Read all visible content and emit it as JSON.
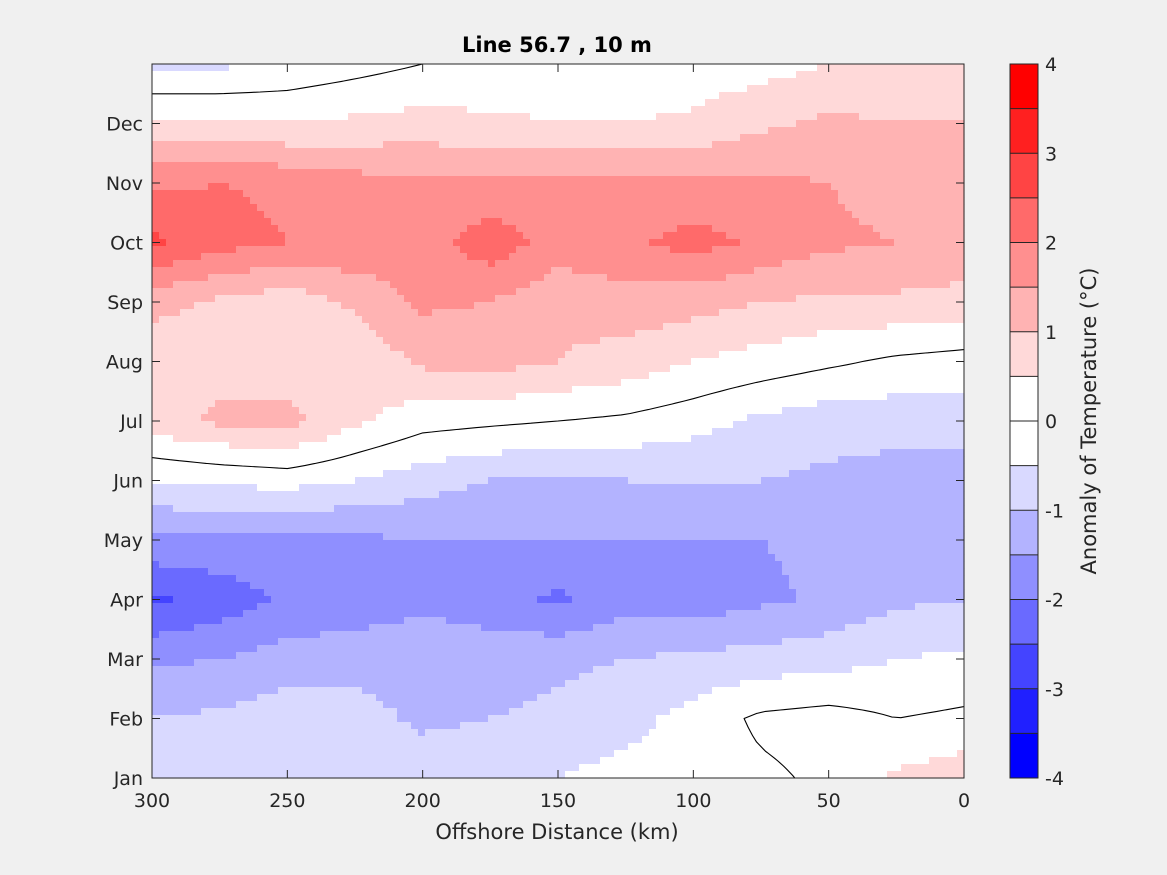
{
  "chart_data": {
    "type": "heatmap",
    "title": "Line 56.7 , 10 m",
    "xlabel": "Offshore Distance (km)",
    "ylabel": "",
    "xlim": [
      300,
      0
    ],
    "x_reversed": true,
    "x_ticks": [
      "300",
      "250",
      "200",
      "150",
      "100",
      "50",
      "0"
    ],
    "x_tick_values": [
      300,
      250,
      200,
      150,
      100,
      50,
      0
    ],
    "y_ticks": [
      "Jan",
      "Feb",
      "Mar",
      "Apr",
      "May",
      "Jun",
      "Jul",
      "Aug",
      "Sep",
      "Oct",
      "Nov",
      "Dec"
    ],
    "ylim": [
      1,
      13
    ],
    "colorbar": {
      "label": "Anomaly of Temperature (°C)",
      "range": [
        -4,
        4
      ],
      "step": 0.5,
      "tick_values": [
        4,
        3,
        2,
        1,
        0,
        -1,
        -2,
        -3,
        -4
      ],
      "tick_labels": [
        "4",
        "3",
        "2",
        "1",
        "0",
        "-1",
        "-2",
        "-3",
        "-4"
      ],
      "colors": [
        "#0000ff",
        "#2020ff",
        "#4444ff",
        "#6a6aff",
        "#8f8fff",
        "#b3b3ff",
        "#d9d9ff",
        "#ffffff",
        "#ffffff",
        "#ffd9d9",
        "#ffb3b3",
        "#ff8f8f",
        "#ff6a6a",
        "#ff4444",
        "#ff2020",
        "#ff0000"
      ]
    },
    "zero_contour": "black",
    "grid": false,
    "months": [
      1,
      2,
      3,
      4,
      5,
      6,
      7,
      8,
      9,
      10,
      11,
      12,
      13
    ],
    "distances": [
      300,
      275,
      250,
      225,
      200,
      175,
      150,
      125,
      100,
      75,
      50,
      25,
      0
    ],
    "values": [
      [
        -0.8,
        -0.8,
        -0.7,
        -0.6,
        -0.7,
        -0.6,
        -0.5,
        -0.3,
        -0.3,
        -0.1,
        0.1,
        0.6,
        0.8
      ],
      [
        -1.0,
        -0.9,
        -0.7,
        -0.8,
        -1.1,
        -1.0,
        -0.9,
        -0.7,
        -0.3,
        0.1,
        0.2,
        0.0,
        0.1
      ],
      [
        -1.6,
        -1.5,
        -1.3,
        -1.2,
        -1.2,
        -1.2,
        -1.1,
        -1.0,
        -0.9,
        -0.8,
        -0.7,
        -0.5,
        -0.4
      ],
      [
        -2.6,
        -2.3,
        -1.9,
        -1.8,
        -1.6,
        -1.8,
        -2.1,
        -1.7,
        -1.8,
        -1.6,
        -1.4,
        -1.1,
        -1.0
      ],
      [
        -1.6,
        -1.6,
        -1.7,
        -1.6,
        -1.5,
        -1.5,
        -1.5,
        -1.5,
        -1.5,
        -1.5,
        -1.4,
        -1.2,
        -1.3
      ],
      [
        -0.5,
        -0.4,
        -0.3,
        -0.5,
        -0.8,
        -1.0,
        -1.1,
        -1.0,
        -1.0,
        -1.0,
        -1.1,
        -1.2,
        -1.2
      ],
      [
        0.8,
        1.1,
        1.2,
        0.6,
        0.2,
        0.1,
        0.0,
        -0.1,
        -0.3,
        -0.6,
        -0.8,
        -0.8,
        -0.8
      ],
      [
        0.6,
        0.8,
        0.7,
        0.6,
        1.1,
        1.2,
        1.0,
        0.8,
        0.5,
        0.3,
        0.1,
        -0.1,
        -0.2
      ],
      [
        1.2,
        0.9,
        0.7,
        1.1,
        1.6,
        1.5,
        1.1,
        1.3,
        1.2,
        1.0,
        0.9,
        0.9,
        0.8
      ],
      [
        2.6,
        2.2,
        2.0,
        1.9,
        1.8,
        2.3,
        1.8,
        1.9,
        2.2,
        1.9,
        1.6,
        1.5,
        1.4
      ],
      [
        1.9,
        2.0,
        1.9,
        1.7,
        1.6,
        1.6,
        1.6,
        1.6,
        1.6,
        1.6,
        1.5,
        1.3,
        1.2
      ],
      [
        0.6,
        0.6,
        0.5,
        0.6,
        0.7,
        0.6,
        0.5,
        0.5,
        0.6,
        0.9,
        1.1,
        1.0,
        1.0
      ],
      [
        -0.6,
        -0.6,
        -0.4,
        -0.2,
        0.0,
        0.1,
        0.2,
        0.2,
        0.2,
        0.3,
        0.5,
        0.7,
        0.7
      ]
    ]
  }
}
